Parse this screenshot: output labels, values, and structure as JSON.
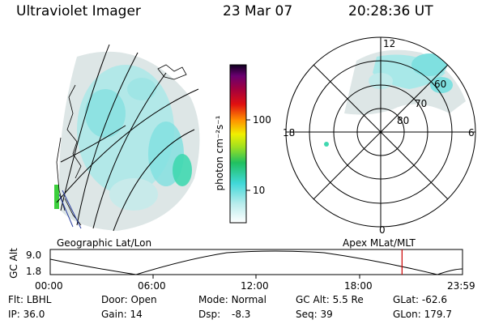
{
  "header": {
    "instrument": "Ultraviolet Imager",
    "date": "23 Mar 07",
    "time": "20:28:36 UT"
  },
  "globe_panel": {
    "label": "Geographic Lat/Lon"
  },
  "polar_panel": {
    "label": "Apex MLat/MLT",
    "lat_rings": [
      "60",
      "70",
      "80"
    ],
    "mlt_labels": {
      "top": "12",
      "left": "18",
      "right": "6",
      "bottom": "0"
    }
  },
  "colorbar": {
    "unit_label": "photon cm⁻²s⁻¹",
    "ticks": [
      "100",
      "10"
    ]
  },
  "altitude_plot": {
    "ylabel": "GC Alt",
    "y_ticks": [
      "9.0",
      "1.8"
    ],
    "x_ticks": [
      "00:00",
      "06:00",
      "12:00",
      "18:00",
      "23:59"
    ],
    "current_marker_hour": 20.48
  },
  "status": {
    "flt_label": "Flt:",
    "flt_value": "LBHL",
    "ip_label": "IP:",
    "ip_value": "36.0",
    "door_label": "Door:",
    "door_value": "Open",
    "gain_label": "Gain:",
    "gain_value": "14",
    "mode_label": "Mode:",
    "mode_value": "Normal",
    "dsp_label": "Dsp:",
    "dsp_value": "-8.3",
    "gcalt_label": "GC Alt:",
    "gcalt_value": "5.5 Re",
    "seq_label": "Seq:",
    "seq_value": "39",
    "glat_label": "GLat:",
    "glat_value": "-62.6",
    "glon_label": "GLon:",
    "glon_value": "179.7"
  },
  "colors": {
    "aurora_light": "#d8e4e4",
    "aurora_cyan": "#7fe0e0",
    "aurora_teal": "#40d8b0",
    "marker_red": "#cc0000"
  }
}
